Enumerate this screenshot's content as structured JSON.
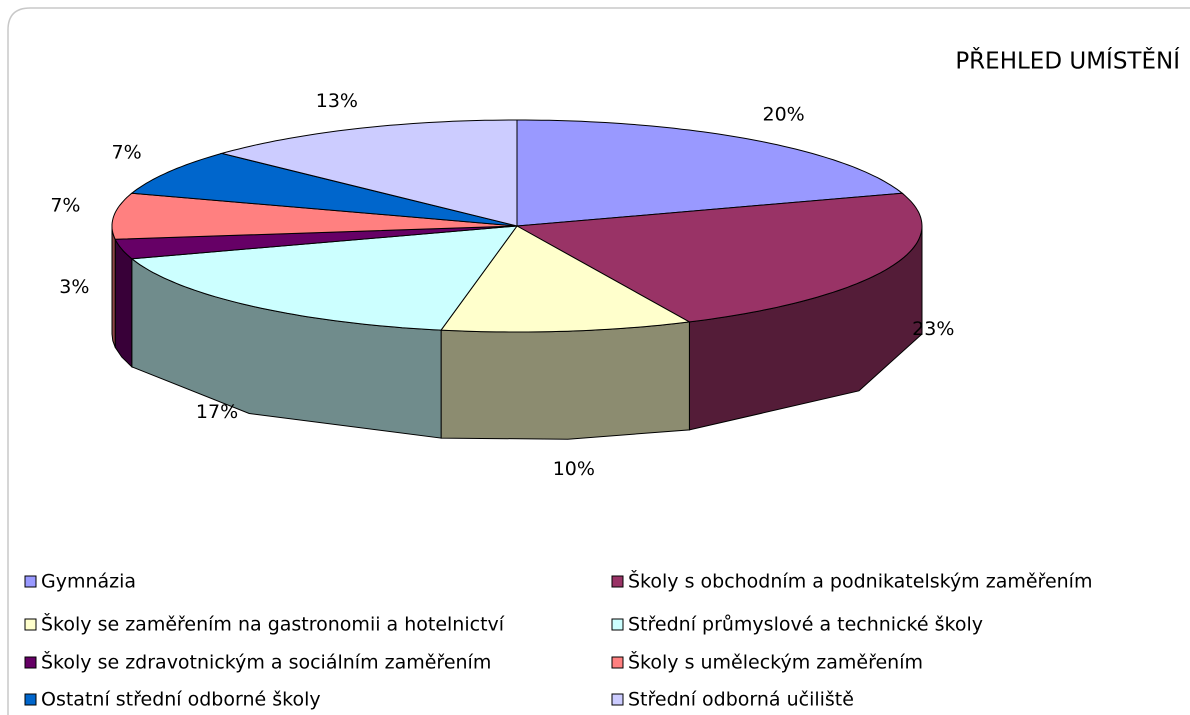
{
  "chart_data": {
    "type": "pie",
    "title": "PŘEHLED UMÍSTĚNÍ",
    "categories": [
      "Gymnázia",
      "Školy s obchodním a podnikatelským zaměřením",
      "Školy se zaměřením na gastronomii a hotelnictví",
      "Střední průmyslové a technické školy",
      "Školy se zdravotnickým a sociálním zaměřením",
      "Školy s uměleckým zaměřením",
      "Ostatní střední odborné školy",
      "Střední odborná učiliště"
    ],
    "values": [
      20,
      23,
      10,
      17,
      3,
      7,
      7,
      13
    ],
    "value_labels": [
      "20%",
      "23%",
      "10%",
      "17%",
      "3%",
      "7%",
      "7%",
      "13%"
    ],
    "colors": [
      "#9999ff",
      "#993366",
      "#ffffcc",
      "#ccffff",
      "#660066",
      "#ff8080",
      "#0066cc",
      "#ccccff"
    ],
    "legend": "bottom"
  }
}
